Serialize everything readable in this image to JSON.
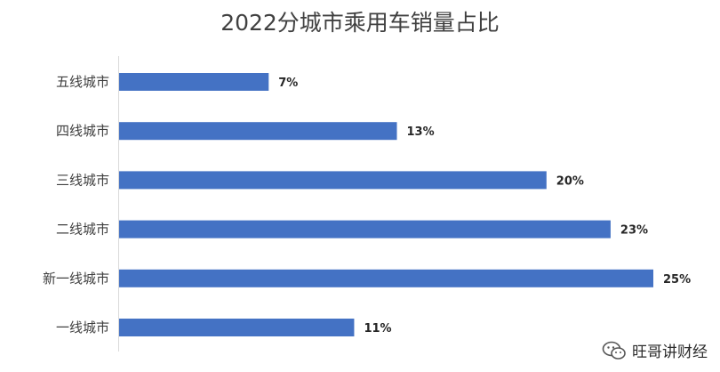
{
  "chart_data": {
    "type": "bar",
    "orientation": "horizontal",
    "title": "2022分城市乘用车销量占比",
    "categories": [
      "五线城市",
      "四线城市",
      "三线城市",
      "二线城市",
      "新一线城市",
      "一线城市"
    ],
    "values": [
      7,
      13,
      20,
      23,
      25,
      11
    ],
    "data_labels": [
      "7%",
      "13%",
      "20%",
      "23%",
      "25%",
      "11%"
    ],
    "xlim": [
      0,
      25
    ],
    "bar_color": "#4472C4",
    "grid": false,
    "legend": "none"
  },
  "watermark": {
    "text": "旺哥讲财经",
    "icon": "wechat-icon"
  }
}
